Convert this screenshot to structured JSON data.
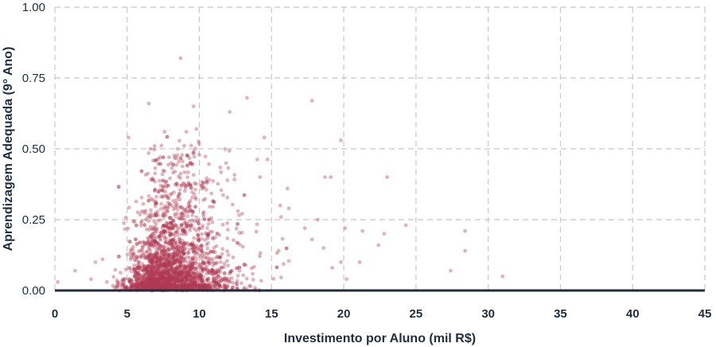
{
  "chart_data": {
    "type": "scatter",
    "title": "",
    "xlabel": "Investimento por Aluno (mil R$)",
    "ylabel": "Aprendizagem Adequada (9° Ano)",
    "xlim": [
      0,
      45
    ],
    "ylim": [
      0,
      1.0
    ],
    "xticks": [
      "0",
      "5",
      "10",
      "15",
      "20",
      "25",
      "30",
      "35",
      "40",
      "45"
    ],
    "yticks": [
      "0.00",
      "0.25",
      "0.50",
      "0.75",
      "1.00"
    ],
    "grid": true,
    "point_color": "#b03a55",
    "zero_line_color": "#1f2d3d",
    "series": [
      {
        "points": [
          [
            8.7,
            0.82
          ],
          [
            13.3,
            0.68
          ],
          [
            6.5,
            0.66
          ],
          [
            9.6,
            0.65
          ],
          [
            17.8,
            0.67
          ],
          [
            12.1,
            0.63
          ],
          [
            9.8,
            0.57
          ],
          [
            9.1,
            0.56
          ],
          [
            7.6,
            0.56
          ],
          [
            19.8,
            0.53
          ],
          [
            5.1,
            0.54
          ],
          [
            14.5,
            0.54
          ],
          [
            6.9,
            0.51
          ],
          [
            8.5,
            0.5
          ],
          [
            23,
            0.4
          ],
          [
            19.1,
            0.4
          ],
          [
            18.7,
            0.4
          ],
          [
            24.3,
            0.23
          ],
          [
            21.3,
            0.21
          ],
          [
            20.1,
            0.22
          ],
          [
            28.4,
            0.21
          ],
          [
            22.8,
            0.2
          ],
          [
            28.4,
            0.14
          ],
          [
            31,
            0.05
          ],
          [
            27.4,
            0.07
          ],
          [
            21.1,
            0.1
          ],
          [
            22.4,
            0.16
          ],
          [
            18.2,
            0.25
          ],
          [
            16.2,
            0.29
          ],
          [
            17.3,
            0.22
          ],
          [
            18.6,
            0.15
          ],
          [
            17.8,
            0.18
          ],
          [
            15.6,
            0.3
          ],
          [
            14.2,
            0.4
          ],
          [
            16.1,
            0.36
          ],
          [
            1.4,
            0.07
          ],
          [
            0.2,
            0.03
          ],
          [
            2.5,
            0.04
          ],
          [
            3.3,
            0.11
          ],
          [
            3.6,
            0.03
          ],
          [
            2.8,
            0.1
          ],
          [
            4.4,
            0.12
          ],
          [
            20.2,
            0.04
          ],
          [
            19.8,
            0.1
          ],
          [
            19.2,
            0.08
          ]
        ],
        "cloud": {
          "count": 2600,
          "x_mean": 7.4,
          "x_sd": 1.9,
          "x_min": 4.0,
          "y_median": 0.07,
          "y_spread": 1.25
        }
      }
    ]
  }
}
